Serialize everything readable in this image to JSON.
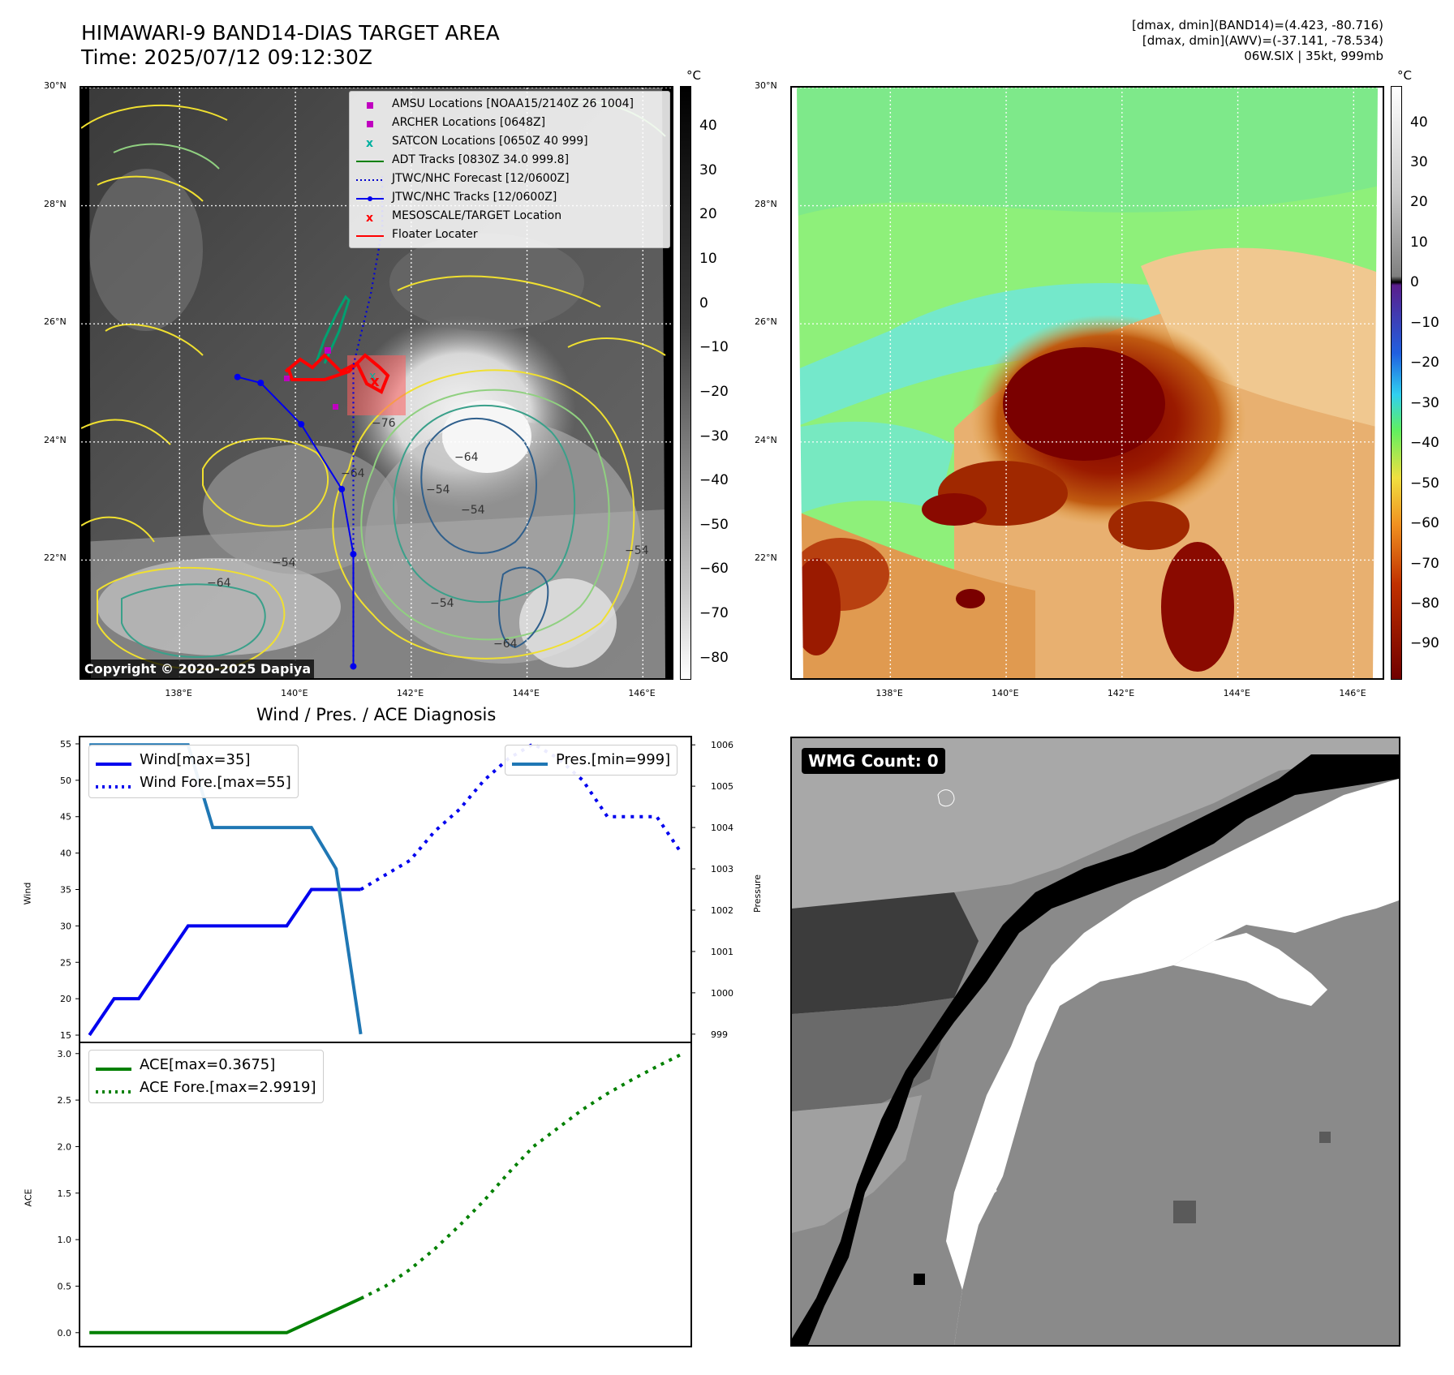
{
  "header": {
    "title_line1": "HIMAWARI-9 BAND14-DIAS TARGET AREA",
    "title_line2": "Time: 2025/07/12 09:12:30Z",
    "info_line1": "[dmax, dmin](BAND14)=(4.423, -80.716)",
    "info_line2": "[dmax, dmin](AWV)=(-37.141, -78.534)",
    "info_line3": "06W.SIX | 35kt, 999mb"
  },
  "map_axes": {
    "lat_labels": [
      "30°N",
      "28°N",
      "26°N",
      "24°N",
      "22°N"
    ],
    "lon_labels": [
      "138°E",
      "140°E",
      "142°E",
      "144°E",
      "146°E"
    ],
    "lon_range": [
      136.3,
      146.5
    ],
    "lat_range": [
      20.0,
      30.0
    ]
  },
  "ir_panel": {
    "colorbar_unit": "°C",
    "colorbar_ticks": [
      "40",
      "30",
      "20",
      "10",
      "0",
      "−10",
      "−20",
      "−30",
      "−40",
      "−50",
      "−60",
      "−70",
      "−80"
    ],
    "copyright": "Copyright © 2020-2025 Dapiya",
    "contour_labels": [
      "−76",
      "−64",
      "−54",
      "−54",
      "−64",
      "−54",
      "−64",
      "−54",
      "−54",
      "−64"
    ],
    "legend": [
      {
        "label": "AMSU Locations [NOAA15/2140Z 26 1004]",
        "color": "#c000c0",
        "symbol": "square"
      },
      {
        "label": "ARCHER Locations [0648Z]",
        "color": "#c000c0",
        "symbol": "square"
      },
      {
        "label": "SATCON Locations [0650Z 40 999]",
        "color": "#00b0a0",
        "symbol": "x"
      },
      {
        "label": "ADT Tracks [0830Z 34.0 999.8]",
        "color": "#008000",
        "symbol": "line"
      },
      {
        "label": "JTWC/NHC Forecast [12/0600Z]",
        "color": "#0000cc",
        "symbol": "dotted"
      },
      {
        "label": "JTWC/NHC Tracks [12/0600Z]",
        "color": "#0000ee",
        "symbol": "line-dot"
      },
      {
        "label": "MESOSCALE/TARGET Location",
        "color": "#ff0000",
        "symbol": "x"
      },
      {
        "label": "Floater Locater",
        "color": "#ff0000",
        "symbol": "line"
      }
    ],
    "jtwc_track": [
      [
        141.0,
        20.2
      ],
      [
        141.0,
        22.1
      ],
      [
        140.8,
        23.2
      ],
      [
        140.1,
        24.3
      ],
      [
        139.4,
        25.0
      ],
      [
        139.0,
        25.1
      ]
    ],
    "jtwc_forecast": [
      [
        141.0,
        20.2
      ],
      [
        141.0,
        25.3
      ],
      [
        141.3,
        26.5
      ],
      [
        141.5,
        27.6
      ],
      [
        141.5,
        28.5
      ]
    ]
  },
  "awv_panel": {
    "colorbar_unit": "°C",
    "colorbar_ticks": [
      "40",
      "30",
      "20",
      "10",
      "0",
      "−10",
      "−20",
      "−30",
      "−40",
      "−50",
      "−60",
      "−70",
      "−80",
      "−90"
    ]
  },
  "diag_title": "Wind / Pres. / ACE Diagnosis",
  "wmg_panel": {
    "badge": "WMG Count: 0"
  },
  "chart_data": [
    {
      "type": "line",
      "title": "Wind / Pres. / ACE Diagnosis",
      "ylabel": "Wind",
      "y2label": "Pressure",
      "ylim": [
        14,
        56
      ],
      "y2lim": [
        998.8,
        1006.2
      ],
      "yticks": [
        "55",
        "50",
        "45",
        "40",
        "35",
        "30",
        "25",
        "20",
        "15"
      ],
      "y2ticks": [
        "1006",
        "1005",
        "1004",
        "1003",
        "1002",
        "1001",
        "1000",
        "999"
      ],
      "x": [
        0,
        1,
        2,
        3,
        4,
        5,
        6,
        7,
        8,
        9,
        10,
        11,
        12,
        13,
        14,
        15,
        16,
        17,
        18,
        19,
        20,
        21,
        22,
        23,
        24
      ],
      "series": [
        {
          "name": "Wind[max=35]",
          "color": "#0000ee",
          "style": "solid",
          "axis": "left",
          "points": [
            [
              0,
              15
            ],
            [
              1,
              20
            ],
            [
              2,
              20
            ],
            [
              4,
              30
            ],
            [
              8,
              30
            ],
            [
              9,
              35
            ],
            [
              11,
              35
            ]
          ]
        },
        {
          "name": "Wind Fore.[max=55]",
          "color": "#0000ee",
          "style": "dotted",
          "axis": "left",
          "points": [
            [
              11,
              35
            ],
            [
              12,
              37
            ],
            [
              13,
              39
            ],
            [
              14,
              43
            ],
            [
              15,
              46
            ],
            [
              16,
              50
            ],
            [
              17,
              53
            ],
            [
              18,
              55
            ],
            [
              19,
              53
            ],
            [
              20,
              50
            ],
            [
              21,
              45
            ],
            [
              22,
              45
            ],
            [
              23,
              45
            ],
            [
              24,
              40
            ]
          ]
        },
        {
          "name": "Pres.[min=999]",
          "color": "#1f77b4",
          "style": "solid",
          "axis": "right",
          "points": [
            [
              0,
              1006
            ],
            [
              4,
              1006
            ],
            [
              5,
              1004
            ],
            [
              9,
              1004
            ],
            [
              10,
              1003
            ],
            [
              11,
              999
            ]
          ]
        }
      ],
      "legend_left": [
        "Wind[max=35]",
        "Wind Fore.[max=55]"
      ],
      "legend_right": [
        "Pres.[min=999]"
      ]
    },
    {
      "type": "line",
      "ylabel": "ACE",
      "ylim": [
        -0.15,
        3.12
      ],
      "yticks": [
        "3.0",
        "2.5",
        "2.0",
        "1.5",
        "1.0",
        "0.5",
        "0.0"
      ],
      "series": [
        {
          "name": "ACE[max=0.3675]",
          "color": "#008000",
          "style": "solid",
          "points": [
            [
              0,
              0.0
            ],
            [
              8,
              0.0
            ],
            [
              11,
              0.3675
            ]
          ]
        },
        {
          "name": "ACE Fore.[max=2.9919]",
          "color": "#008000",
          "style": "dotted",
          "points": [
            [
              11,
              0.3675
            ],
            [
              12,
              0.5
            ],
            [
              13,
              0.68
            ],
            [
              14,
              0.9
            ],
            [
              15,
              1.15
            ],
            [
              16,
              1.42
            ],
            [
              17,
              1.72
            ],
            [
              18,
              2.0
            ],
            [
              19,
              2.2
            ],
            [
              20,
              2.4
            ],
            [
              21,
              2.57
            ],
            [
              22,
              2.72
            ],
            [
              23,
              2.86
            ],
            [
              24,
              2.9919
            ]
          ]
        }
      ]
    }
  ]
}
